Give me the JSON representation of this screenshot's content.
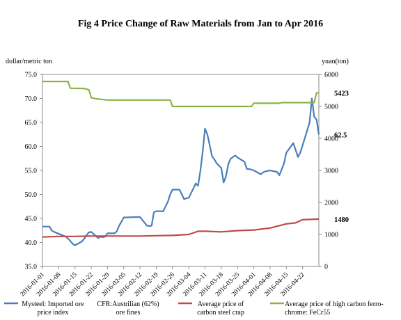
{
  "chart_data": {
    "type": "line",
    "title": "Fig 4 Price Change of Raw Materials from Jan to Apr 2016",
    "ylabel_left": "dollar/metric ton",
    "ylabel_right": "yuan(ton)",
    "ylim_left": [
      35.0,
      75.0
    ],
    "ylim_right": [
      0,
      6000
    ],
    "yticks_left": [
      "75.0",
      "70.0",
      "65.0",
      "60.0",
      "55.0",
      "50.0",
      "45.0",
      "40.0",
      "35.0"
    ],
    "yticks_right": [
      "6000",
      "5000",
      "4000",
      "3000",
      "2000",
      "1000",
      "0"
    ],
    "xticks": [
      "2016-01-01",
      "2016-01-08",
      "2016-01-15",
      "2016-01-22",
      "2016-01-29",
      "2016-02-05",
      "2016-02-12",
      "2016-02-19",
      "2016-02-26",
      "2016-03-04",
      "2016-03-11",
      "2016-03-18",
      "2016-03-25",
      "2016-04-01",
      "2016-04-08",
      "2016-04-15",
      "2016-04-22"
    ],
    "x_range": [
      "2016-01-01",
      "2016-04-29"
    ],
    "annotations": [
      {
        "text": "5423",
        "axis": "right",
        "value": 5423
      },
      {
        "text": "62.5",
        "axis": "left",
        "value": 62.5
      },
      {
        "text": "1480",
        "axis": "right",
        "value": 1480
      }
    ],
    "series": [
      {
        "name": "Mysteel: Imported ore price index CFR:Austrilian (62%) ore fines",
        "legend_lines": [
          "Mysteel: Imported ore",
          "price index"
        ],
        "legend_lines_b": [
          "CFR:Austrilian (62%)",
          "ore fines"
        ],
        "axis": "left",
        "color": "#4a7ebb",
        "points": [
          [
            "2016-01-01",
            43.3
          ],
          [
            "2016-01-04",
            43.3
          ],
          [
            "2016-01-05",
            42.5
          ],
          [
            "2016-01-06",
            42.2
          ],
          [
            "2016-01-07",
            42.0
          ],
          [
            "2016-01-11",
            41.2
          ],
          [
            "2016-01-12",
            40.8
          ],
          [
            "2016-01-13",
            40.3
          ],
          [
            "2016-01-14",
            39.7
          ],
          [
            "2016-01-15",
            39.4
          ],
          [
            "2016-01-18",
            40.2
          ],
          [
            "2016-01-19",
            40.8
          ],
          [
            "2016-01-20",
            41.5
          ],
          [
            "2016-01-21",
            42.1
          ],
          [
            "2016-01-22",
            42.2
          ],
          [
            "2016-01-25",
            40.9
          ],
          [
            "2016-01-26",
            41.2
          ],
          [
            "2016-01-27",
            41.1
          ],
          [
            "2016-01-28",
            41.2
          ],
          [
            "2016-01-29",
            41.9
          ],
          [
            "2016-02-01",
            41.9
          ],
          [
            "2016-02-02",
            42.3
          ],
          [
            "2016-02-03",
            43.5
          ],
          [
            "2016-02-04",
            44.3
          ],
          [
            "2016-02-05",
            45.2
          ],
          [
            "2016-02-12",
            45.3
          ],
          [
            "2016-02-15",
            43.5
          ],
          [
            "2016-02-16",
            43.4
          ],
          [
            "2016-02-17",
            43.5
          ],
          [
            "2016-02-18",
            46.3
          ],
          [
            "2016-02-19",
            46.5
          ],
          [
            "2016-02-22",
            46.5
          ],
          [
            "2016-02-23",
            47.5
          ],
          [
            "2016-02-24",
            48.5
          ],
          [
            "2016-02-25",
            50.0
          ],
          [
            "2016-02-26",
            51.0
          ],
          [
            "2016-02-29",
            51.0
          ],
          [
            "2016-03-01",
            50.0
          ],
          [
            "2016-03-02",
            49.0
          ],
          [
            "2016-03-03",
            49.2
          ],
          [
            "2016-03-04",
            49.3
          ],
          [
            "2016-03-07",
            52.3
          ],
          [
            "2016-03-08",
            51.8
          ],
          [
            "2016-03-09",
            55.0
          ],
          [
            "2016-03-10",
            59.0
          ],
          [
            "2016-03-11",
            63.7
          ],
          [
            "2016-03-12",
            62.5
          ],
          [
            "2016-03-14",
            58.0
          ],
          [
            "2016-03-15",
            57.3
          ],
          [
            "2016-03-16",
            56.5
          ],
          [
            "2016-03-17",
            56.0
          ],
          [
            "2016-03-18",
            55.5
          ],
          [
            "2016-03-19",
            52.5
          ],
          [
            "2016-03-20",
            53.8
          ],
          [
            "2016-03-21",
            56.3
          ],
          [
            "2016-03-22",
            57.4
          ],
          [
            "2016-03-23",
            57.8
          ],
          [
            "2016-03-24",
            58.1
          ],
          [
            "2016-03-25",
            57.7
          ],
          [
            "2016-03-28",
            56.8
          ],
          [
            "2016-03-29",
            55.3
          ],
          [
            "2016-03-30",
            55.3
          ],
          [
            "2016-04-01",
            55.0
          ],
          [
            "2016-04-04",
            54.2
          ],
          [
            "2016-04-05",
            54.6
          ],
          [
            "2016-04-06",
            54.8
          ],
          [
            "2016-04-07",
            54.9
          ],
          [
            "2016-04-08",
            55.0
          ],
          [
            "2016-04-11",
            54.7
          ],
          [
            "2016-04-12",
            54.0
          ],
          [
            "2016-04-13",
            55.2
          ],
          [
            "2016-04-14",
            56.5
          ],
          [
            "2016-04-15",
            58.7
          ],
          [
            "2016-04-18",
            60.7
          ],
          [
            "2016-04-19",
            59.3
          ],
          [
            "2016-04-20",
            57.8
          ],
          [
            "2016-04-21",
            58.7
          ],
          [
            "2016-04-22",
            60.2
          ],
          [
            "2016-04-25",
            65.0
          ],
          [
            "2016-04-26",
            70.0
          ],
          [
            "2016-04-27",
            66.2
          ],
          [
            "2016-04-28",
            65.6
          ],
          [
            "2016-04-29",
            62.5
          ]
        ]
      },
      {
        "name": "Average price of carbon steel crap",
        "legend_lines": [
          "Average price of",
          "carbon steel crap"
        ],
        "axis": "right",
        "color": "#be4b48",
        "points": [
          [
            "2016-01-01",
            920
          ],
          [
            "2016-01-08",
            940
          ],
          [
            "2016-01-15",
            940
          ],
          [
            "2016-01-22",
            950
          ],
          [
            "2016-01-29",
            950
          ],
          [
            "2016-02-05",
            950
          ],
          [
            "2016-02-12",
            950
          ],
          [
            "2016-02-19",
            960
          ],
          [
            "2016-02-26",
            970
          ],
          [
            "2016-03-04",
            1000
          ],
          [
            "2016-03-08",
            1100
          ],
          [
            "2016-03-11",
            1100
          ],
          [
            "2016-03-18",
            1080
          ],
          [
            "2016-03-25",
            1120
          ],
          [
            "2016-04-01",
            1140
          ],
          [
            "2016-04-08",
            1200
          ],
          [
            "2016-04-15",
            1330
          ],
          [
            "2016-04-19",
            1360
          ],
          [
            "2016-04-22",
            1460
          ],
          [
            "2016-04-29",
            1480
          ]
        ]
      },
      {
        "name": "Average price of high carbon ferro-chrome: FeCr55",
        "legend_lines": [
          "Average price of high carbon ferro-",
          "chrome: FeCr55"
        ],
        "axis": "right",
        "color": "#8cb24a",
        "points": [
          [
            "2016-01-01",
            5780
          ],
          [
            "2016-01-12",
            5780
          ],
          [
            "2016-01-13",
            5570
          ],
          [
            "2016-01-19",
            5560
          ],
          [
            "2016-01-21",
            5520
          ],
          [
            "2016-01-22",
            5270
          ],
          [
            "2016-01-25",
            5230
          ],
          [
            "2016-01-29",
            5200
          ],
          [
            "2016-02-25",
            5200
          ],
          [
            "2016-02-26",
            5000
          ],
          [
            "2016-03-31",
            5000
          ],
          [
            "2016-04-01",
            5100
          ],
          [
            "2016-04-12",
            5100
          ],
          [
            "2016-04-13",
            5120
          ],
          [
            "2016-04-27",
            5120
          ],
          [
            "2016-04-28",
            5423
          ],
          [
            "2016-04-29",
            5423
          ]
        ]
      }
    ]
  }
}
